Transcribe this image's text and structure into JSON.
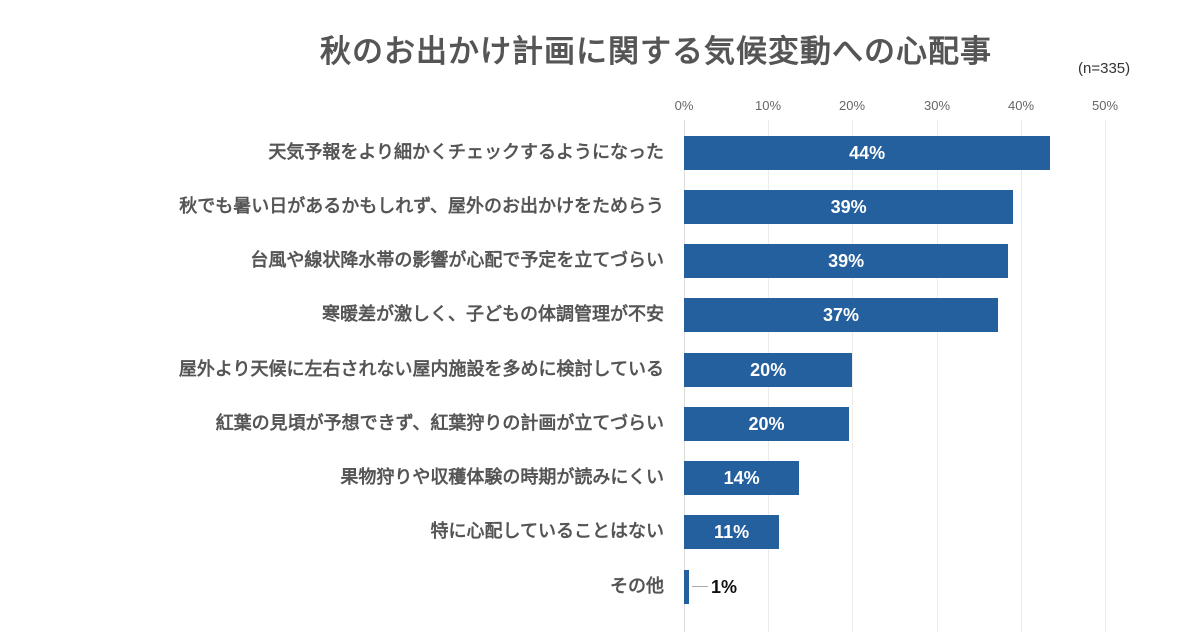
{
  "chart_data": {
    "type": "bar",
    "orientation": "horizontal",
    "title": "秋のお出かけ計画に関する気候変動への心配事",
    "sample_size": "(n=335)",
    "xlabel": "",
    "ylabel": "",
    "xlim": [
      0,
      50
    ],
    "x_ticks": [
      "0%",
      "10%",
      "20%",
      "30%",
      "40%",
      "50%"
    ],
    "x_axis_position": "top",
    "grid": true,
    "legend": null,
    "bar_color": "#245f9e",
    "categories": [
      "天気予報をより細かくチェックするようになった",
      "秋でも暑い日があるかもしれず、屋外のお出かけをためらう",
      "台風や線状降水帯の影響が心配で予定を立てづらい",
      "寒暖差が激しく、子どもの体調管理が不安",
      "屋外より天候に左右されない屋内施設を多めに検討している",
      "紅葉の見頃が予想できず、紅葉狩りの計画が立てづらい",
      "果物狩りや収穫体験の時期が読みにくい",
      "特に心配していることはない",
      "その他"
    ],
    "values": [
      43.5,
      39.1,
      38.5,
      37.3,
      20.0,
      19.6,
      13.7,
      11.3,
      0.6
    ],
    "data_labels": [
      "44%",
      "39%",
      "39%",
      "37%",
      "20%",
      "20%",
      "14%",
      "11%",
      "1%"
    ]
  },
  "labels": {
    "title": "秋のお出かけ計画に関する気候変動への心配事",
    "sample": "(n=335)",
    "ticks": [
      "0%",
      "10%",
      "20%",
      "30%",
      "40%",
      "50%"
    ],
    "rows": [
      {
        "label": "天気予報をより細かくチェックするようになった",
        "value": "44%"
      },
      {
        "label": "秋でも暑い日があるかもしれず、屋外のお出かけをためらう",
        "value": "39%"
      },
      {
        "label": "台風や線状降水帯の影響が心配で予定を立てづらい",
        "value": "39%"
      },
      {
        "label": "寒暖差が激しく、子どもの体調管理が不安",
        "value": "37%"
      },
      {
        "label": "屋外より天候に左右されない屋内施設を多めに検討している",
        "value": "20%"
      },
      {
        "label": "紅葉の見頃が予想できず、紅葉狩りの計画が立てづらい",
        "value": "20%"
      },
      {
        "label": "果物狩りや収穫体験の時期が読みにくい",
        "value": "14%"
      },
      {
        "label": "特に心配していることはない",
        "value": "11%"
      },
      {
        "label": "その他",
        "value": "1%"
      }
    ]
  }
}
